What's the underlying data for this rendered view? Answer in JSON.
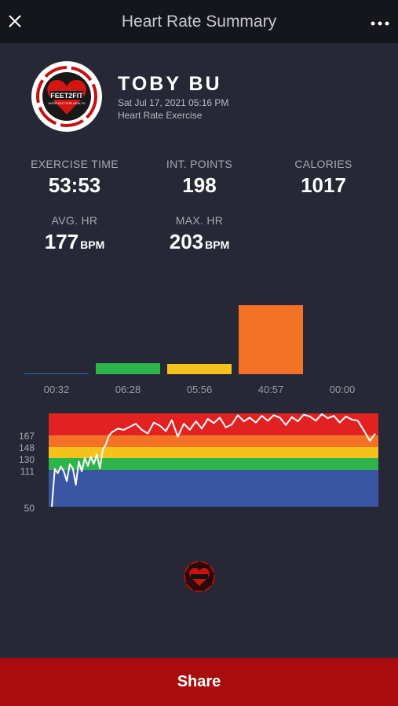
{
  "header": {
    "title": "Heart Rate Summary",
    "close_icon": "close-icon",
    "more_icon": "more-horizontal-icon"
  },
  "profile": {
    "name": "TOBY BU",
    "datetime": "Sat Jul 17, 2021 05:16 PM",
    "activity": "Heart Rate Exercise",
    "logo_text": "FEET2FIT",
    "logo_subtext": "WORKOUT FOR HEALTH"
  },
  "stats": {
    "exercise_time": {
      "label": "EXERCISE TIME",
      "value": "53:53"
    },
    "int_points": {
      "label": "INT. POINTS",
      "value": "198"
    },
    "calories": {
      "label": "CALORIES",
      "value": "1017"
    },
    "avg_hr": {
      "label": "AVG. HR",
      "value": "177",
      "unit": "BPM"
    },
    "max_hr": {
      "label": "MAX. HR",
      "value": "203",
      "unit": "BPM"
    }
  },
  "chart_data": [
    {
      "type": "bar",
      "categories": [
        "00:32",
        "06:28",
        "05:56",
        "40:57",
        "00:00"
      ],
      "values": [
        0.53,
        6.47,
        5.93,
        40.95,
        0
      ],
      "colors": [
        "#2f61b8",
        "#2db54b",
        "#f5c21b",
        "#f47226",
        "#e22222"
      ],
      "title": "",
      "xlabel": "",
      "ylabel": ""
    },
    {
      "type": "line",
      "title": "",
      "xlabel": "",
      "ylabel": "",
      "y_ticks": [
        "167",
        "148",
        "130",
        "111",
        "50"
      ],
      "ylim": [
        50,
        203
      ],
      "zones": [
        {
          "from": 50,
          "to": 111,
          "color": "#3a55a4"
        },
        {
          "from": 111,
          "to": 130,
          "color": "#2db54b"
        },
        {
          "from": 130,
          "to": 148,
          "color": "#f5c21b"
        },
        {
          "from": 148,
          "to": 167,
          "color": "#f47226"
        },
        {
          "from": 167,
          "to": 203,
          "color": "#e22222"
        }
      ],
      "series": [
        {
          "color": "#ffffff",
          "x": [
            0,
            0.5,
            1,
            1.5,
            2,
            2.5,
            3,
            3.5,
            4,
            4.5,
            5,
            5.5,
            6,
            6.5,
            7,
            7.5,
            8,
            8.5,
            9,
            9.5,
            10,
            11,
            12,
            13,
            14,
            15,
            16,
            17,
            18,
            19,
            20,
            21,
            22,
            23,
            24,
            25,
            26,
            27,
            28,
            29,
            30,
            31,
            32,
            33,
            34,
            35,
            36,
            37,
            38,
            39,
            40,
            41,
            42,
            43,
            44,
            45,
            46,
            47,
            48,
            49,
            50,
            51,
            52,
            53,
            53.9
          ],
          "y": [
            50,
            112,
            105,
            116,
            108,
            92,
            120,
            113,
            86,
            124,
            108,
            130,
            117,
            132,
            120,
            136,
            113,
            144,
            152,
            166,
            172,
            178,
            176,
            181,
            186,
            176,
            170,
            188,
            183,
            174,
            192,
            165,
            186,
            176,
            190,
            178,
            194,
            187,
            196,
            180,
            185,
            200,
            190,
            196,
            188,
            199,
            191,
            200,
            196,
            184,
            197,
            190,
            201,
            198,
            191,
            202,
            195,
            199,
            188,
            198,
            193,
            191,
            175,
            158,
            170
          ]
        }
      ]
    }
  ],
  "footer": {
    "share_label": "Share",
    "logo_icon": "feet2fit-logo-icon"
  }
}
